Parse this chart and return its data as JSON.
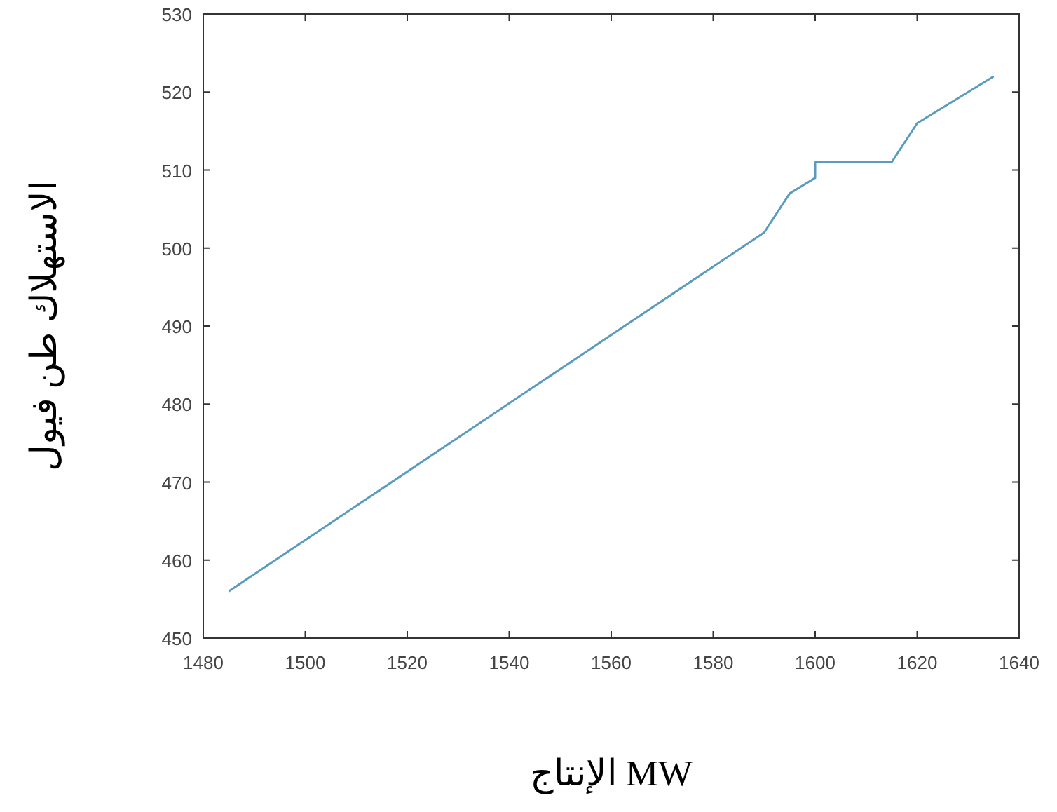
{
  "chart_data": {
    "type": "line",
    "xlabel": "الإنتاج MW",
    "ylabel": "الاستهلاك طن فيول",
    "x": [
      1485,
      1590,
      1595,
      1600,
      1600,
      1615,
      1620,
      1635
    ],
    "series": [
      {
        "color": "#5b9bbf",
        "values": [
          456,
          502,
          507,
          509,
          511,
          511,
          516,
          522
        ]
      }
    ],
    "xlim": [
      1480,
      1640
    ],
    "xticks": [
      1480,
      1500,
      1520,
      1540,
      1560,
      1580,
      1600,
      1620,
      1640
    ],
    "ylim": [
      450,
      530
    ],
    "yticks": [
      450,
      460,
      470,
      480,
      490,
      500,
      510,
      520,
      530
    ],
    "grid": false
  }
}
